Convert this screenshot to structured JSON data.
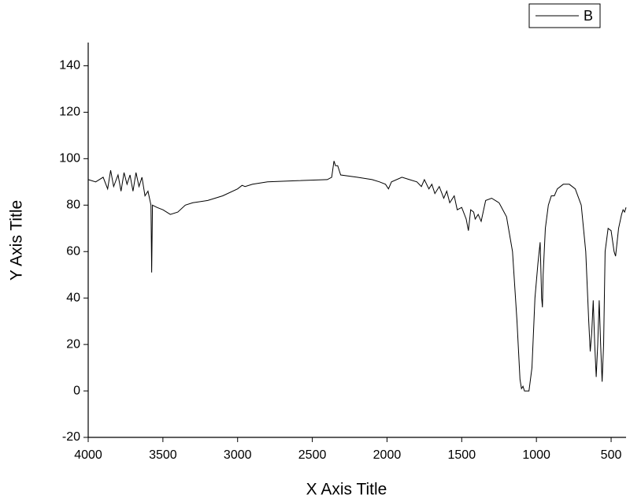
{
  "chart_data": {
    "type": "line",
    "xlabel": "X Axis Title",
    "ylabel": "Y Axis Title",
    "x": [
      4000,
      3950,
      3900,
      3870,
      3850,
      3830,
      3800,
      3780,
      3760,
      3740,
      3720,
      3700,
      3680,
      3660,
      3640,
      3620,
      3600,
      3580,
      3575,
      3570,
      3540,
      3500,
      3450,
      3400,
      3350,
      3300,
      3200,
      3100,
      3000,
      2970,
      2950,
      2900,
      2800,
      2600,
      2400,
      2370,
      2355,
      2345,
      2330,
      2310,
      2200,
      2100,
      2050,
      2010,
      1990,
      1970,
      1900,
      1850,
      1800,
      1770,
      1750,
      1720,
      1700,
      1680,
      1650,
      1620,
      1600,
      1580,
      1550,
      1530,
      1500,
      1470,
      1455,
      1440,
      1420,
      1410,
      1390,
      1370,
      1340,
      1300,
      1250,
      1200,
      1160,
      1130,
      1110,
      1100,
      1090,
      1080,
      1050,
      1030,
      1010,
      990,
      975,
      965,
      960,
      955,
      940,
      920,
      900,
      880,
      860,
      820,
      780,
      740,
      700,
      670,
      650,
      640,
      630,
      620,
      610,
      600,
      590,
      580,
      570,
      560,
      550,
      540,
      520,
      500,
      480,
      470,
      450,
      430,
      420,
      410,
      400
    ],
    "series": [
      {
        "name": "B",
        "color": "#000000",
        "values": [
          91,
          90,
          92,
          87,
          95,
          88,
          93,
          86,
          94,
          89,
          93,
          86,
          94,
          88,
          92,
          84,
          86,
          80,
          51,
          80,
          79,
          78,
          76,
          77,
          80,
          81,
          82,
          84,
          87,
          88.5,
          88,
          89,
          90,
          90.5,
          91,
          92,
          99,
          97,
          97,
          93,
          92,
          91,
          90,
          89,
          87,
          90,
          92,
          91,
          90,
          88,
          91,
          87,
          89,
          85,
          88,
          83,
          86,
          81,
          84,
          78,
          79,
          74,
          69,
          78,
          77,
          74,
          76,
          73,
          82,
          83,
          81,
          75,
          60,
          30,
          5,
          1,
          2,
          0,
          0,
          10,
          40,
          55,
          64,
          40,
          36,
          50,
          70,
          80,
          84,
          84,
          87,
          89,
          89,
          87,
          80,
          60,
          30,
          17,
          25,
          39,
          20,
          6,
          20,
          39,
          20,
          4,
          20,
          60,
          70,
          69,
          60,
          58,
          70,
          76,
          78,
          77,
          79
        ]
      }
    ],
    "xlim": [
      4000,
      400
    ],
    "xticks": [
      4000,
      3500,
      3000,
      2500,
      2000,
      1500,
      1000,
      500
    ],
    "ylim": [
      -20,
      150
    ],
    "yticks": [
      -20,
      0,
      20,
      40,
      60,
      80,
      100,
      120,
      140
    ],
    "legend": "upper right",
    "grid": false
  }
}
